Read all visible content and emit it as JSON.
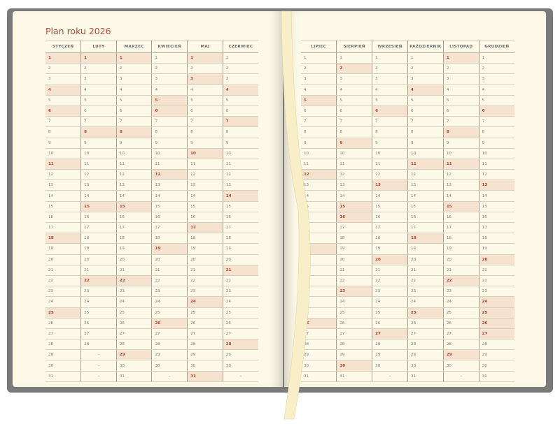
{
  "title": "Plan roku 2026",
  "colors": {
    "highlight_bg": "#f6e3cf",
    "highlight_text": "#b2422e",
    "title": "#b04a3a",
    "page": "#fdf9e8",
    "cover": "#7a7a7a"
  },
  "missing_day_mark": "–",
  "left_page": {
    "months": [
      {
        "name": "STYCZEŃ",
        "days": 31,
        "highlighted": [
          1,
          4,
          6,
          11,
          18,
          25
        ]
      },
      {
        "name": "LUTY",
        "days": 28,
        "highlighted": [
          1,
          8,
          15,
          22
        ]
      },
      {
        "name": "MARZEC",
        "days": 31,
        "highlighted": [
          1,
          8,
          15,
          22,
          29
        ]
      },
      {
        "name": "KWIECIEŃ",
        "days": 30,
        "highlighted": [
          5,
          6,
          12,
          19,
          26
        ]
      },
      {
        "name": "MAJ",
        "days": 31,
        "highlighted": [
          1,
          3,
          10,
          17,
          24,
          31
        ]
      },
      {
        "name": "CZERWIEC",
        "days": 30,
        "highlighted": [
          4,
          7,
          14,
          21,
          28
        ]
      }
    ]
  },
  "right_page": {
    "months": [
      {
        "name": "LIPIEC",
        "days": 31,
        "highlighted": [
          5,
          12,
          19,
          26
        ]
      },
      {
        "name": "SIERPIEŃ",
        "days": 31,
        "highlighted": [
          2,
          9,
          15,
          16,
          23,
          30
        ]
      },
      {
        "name": "WRZESIEŃ",
        "days": 30,
        "highlighted": [
          6,
          13,
          20,
          27
        ]
      },
      {
        "name": "PAŹDZIERNIK",
        "days": 31,
        "highlighted": [
          4,
          11,
          18,
          25
        ]
      },
      {
        "name": "LISTOPAD",
        "days": 30,
        "highlighted": [
          1,
          8,
          11,
          15,
          22,
          29
        ]
      },
      {
        "name": "GRUDZIEŃ",
        "days": 31,
        "highlighted": [
          6,
          13,
          20,
          24,
          25,
          26,
          27
        ]
      }
    ]
  }
}
